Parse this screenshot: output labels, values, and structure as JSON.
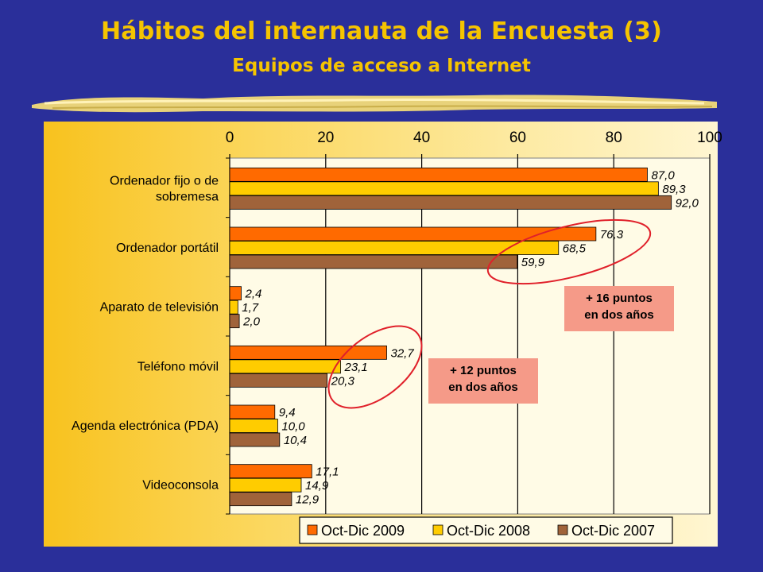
{
  "title": "Hábitos del internauta de la Encuesta (3)",
  "subtitle": "Equipos de acceso a Internet",
  "callouts": [
    {
      "line1": "+ 16 puntos",
      "line2": "en dos años"
    },
    {
      "line1": "+ 12 puntos",
      "line2": "en dos años"
    }
  ],
  "colors": {
    "background": "#2a2f9a",
    "title": "#f5c400",
    "series": [
      "#ff6a00",
      "#ffcc00",
      "#a0633a"
    ],
    "ellipse": "#e0202a",
    "callout_bg": "#f59a88"
  },
  "chart_data": {
    "type": "bar",
    "orientation": "horizontal",
    "categories": [
      [
        "Ordenador fijo o de",
        "sobremesa"
      ],
      [
        "Ordenador portátil"
      ],
      [
        "Aparato de televisión"
      ],
      [
        "Teléfono móvil"
      ],
      [
        "Agenda electrónica (PDA)"
      ],
      [
        "Videoconsola"
      ]
    ],
    "series": [
      {
        "name": "Oct-Dic 2009",
        "values": [
          87.0,
          76.3,
          2.4,
          32.7,
          9.4,
          17.1
        ],
        "labels": [
          "87,0",
          "76,3",
          "2,4",
          "32,7",
          "9,4",
          "17,1"
        ]
      },
      {
        "name": "Oct-Dic 2008",
        "values": [
          89.3,
          68.5,
          1.7,
          23.1,
          10.0,
          14.9
        ],
        "labels": [
          "89,3",
          "68,5",
          "1,7",
          "23,1",
          "10,0",
          "14,9"
        ]
      },
      {
        "name": "Oct-Dic 2007",
        "values": [
          92.0,
          59.9,
          2.0,
          20.3,
          10.4,
          12.9
        ],
        "labels": [
          "92,0",
          "59,9",
          "2,0",
          "20,3",
          "10,4",
          "12,9"
        ]
      }
    ],
    "xlim": [
      0,
      100
    ],
    "xticks": [
      "0",
      "20",
      "40",
      "60",
      "80",
      "100"
    ],
    "xaxis_position": "top",
    "grid": true,
    "legend": "bottom-right"
  }
}
